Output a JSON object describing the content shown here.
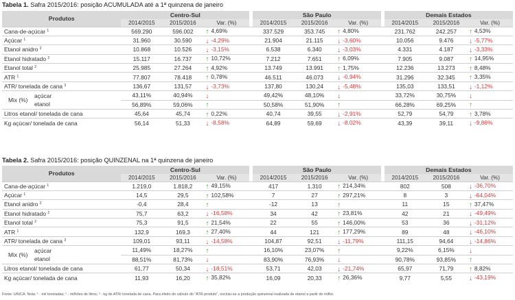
{
  "table1": {
    "title_bold": "Tabela 1.",
    "title_text": " Safra 2015/2016: posição ACUMULADA até a 1ª quinzena de janeiro",
    "header": {
      "produtos": "Produtos",
      "groups": [
        "Centro-Sul",
        "São Paulo",
        "Demais Estados"
      ],
      "col1": "2014/2015",
      "col2": "2015/2016",
      "var": "Var. (%)"
    },
    "rows": [
      {
        "label": "Cana-de-açúcar",
        "sup": "1",
        "cs": [
          "569.290",
          "596.002",
          "up",
          "4,69%"
        ],
        "sp": [
          "337.529",
          "353.745",
          "up",
          "4,80%"
        ],
        "de": [
          "231.762",
          "242.257",
          "up",
          "4,53%"
        ]
      },
      {
        "label": "Açúcar",
        "sup": "1",
        "cs": [
          "31.960",
          "30.590",
          "down",
          "-4,29%"
        ],
        "sp": [
          "21.904",
          "21.115",
          "down",
          "-3,60%"
        ],
        "de": [
          "10.056",
          "9.476",
          "down",
          "-5,77%"
        ]
      },
      {
        "label": "Etanol anidro",
        "sup": "2",
        "cs": [
          "10.868",
          "10.526",
          "down",
          "-3,15%"
        ],
        "sp": [
          "6.538",
          "6.340",
          "down",
          "-3,03%"
        ],
        "de": [
          "4.331",
          "4.187",
          "down",
          "-3,33%"
        ]
      },
      {
        "label": "Etanol hidratado",
        "sup": "2",
        "cs": [
          "15.117",
          "16.737",
          "up",
          "10,72%"
        ],
        "sp": [
          "7.212",
          "7.651",
          "up",
          "6,09%"
        ],
        "de": [
          "7.905",
          "9.087",
          "up",
          "14,95%"
        ]
      },
      {
        "label": "Etanol total",
        "sup": "2",
        "cs": [
          "25.985",
          "27.264",
          "up",
          "4,92%"
        ],
        "sp": [
          "13.749",
          "13.991",
          "up",
          "1,75%"
        ],
        "de": [
          "12.236",
          "13.273",
          "up",
          "8,48%"
        ]
      },
      {
        "label": "ATR",
        "sup": "1",
        "cs": [
          "77.807",
          "78.418",
          "up",
          "0,78%"
        ],
        "sp": [
          "46.511",
          "46.073",
          "down",
          "-0,94%"
        ],
        "de": [
          "31.296",
          "32.345",
          "up",
          "3,35%"
        ]
      },
      {
        "label": "ATR/ tonelada de cana",
        "sup": "3",
        "cs": [
          "136,67",
          "131,57",
          "down",
          "-3,73%"
        ],
        "sp": [
          "137,80",
          "130,24",
          "down",
          "-5,48%"
        ],
        "de": [
          "135,03",
          "133,51",
          "down",
          "-1,12%"
        ]
      }
    ],
    "mix": {
      "label": "Mix (%)",
      "acucar": "açúcar",
      "etanol": "etanol",
      "cs": {
        "a": [
          "43,11%",
          "40,94%",
          "down"
        ],
        "e": [
          "56,89%",
          "59,06%",
          "up"
        ]
      },
      "sp": {
        "a": [
          "49,42%",
          "48,10%",
          "down"
        ],
        "e": [
          "50,58%",
          "51,90%",
          "up"
        ]
      },
      "de": {
        "a": [
          "33,72%",
          "30,75%",
          "down"
        ],
        "e": [
          "66,28%",
          "69,25%",
          "up"
        ]
      }
    },
    "rows2": [
      {
        "label": "Litros etanol/ tonelada de cana",
        "sup": "",
        "cs": [
          "45,64",
          "45,74",
          "up",
          "0,22%"
        ],
        "sp": [
          "40,74",
          "39,55",
          "down",
          "-2,91%"
        ],
        "de": [
          "52,79",
          "54,79",
          "up",
          "3,78%"
        ]
      },
      {
        "label": "Kg açúcar/ tonelada de cana",
        "sup": "",
        "cs": [
          "56,14",
          "51,33",
          "down",
          "-8,58%"
        ],
        "sp": [
          "64,89",
          "59,69",
          "down",
          "-8,02%"
        ],
        "de": [
          "43,39",
          "39,11",
          "down",
          "-9,86%"
        ]
      }
    ]
  },
  "table2": {
    "title_bold": "Tabela 2.",
    "title_text": " Safra 2015/2016: posição QUINZENAL na 1ª quinzena de janeiro",
    "header": {
      "produtos": "Produtos",
      "groups": [
        "Centro-Sul",
        "São Paulo",
        "Demais Estados"
      ],
      "col1": "2014/2015",
      "col2": "2015/2016",
      "var": "Var. (%)"
    },
    "rows": [
      {
        "label": "Cana-de-açúcar",
        "sup": "1",
        "cs": [
          "1.219,0",
          "1.818,2",
          "up",
          "49,15%"
        ],
        "sp": [
          "417",
          "1.310",
          "up",
          "214,34%"
        ],
        "de": [
          "802",
          "508",
          "down",
          "-36,70%"
        ]
      },
      {
        "label": "Açúcar",
        "sup": "1",
        "cs": [
          "14,5",
          "29,5",
          "up",
          "102,58%"
        ],
        "sp": [
          "7",
          "27",
          "up",
          "297,21%"
        ],
        "de": [
          "8",
          "3",
          "down",
          "-64,04%"
        ]
      },
      {
        "label": "Etanol anidro",
        "sup": "2",
        "cs": [
          "-0,4",
          "28,4",
          "up",
          ""
        ],
        "sp": [
          "-12",
          "13",
          "up",
          ""
        ],
        "de": [
          "11",
          "15",
          "up",
          "37,47%"
        ]
      },
      {
        "label": "Etanol hidratado",
        "sup": "2",
        "cs": [
          "75,7",
          "63,2",
          "down",
          "-16,58%"
        ],
        "sp": [
          "34",
          "42",
          "up",
          "23,81%"
        ],
        "de": [
          "42",
          "21",
          "down",
          "-49,49%"
        ]
      },
      {
        "label": "Etanol total",
        "sup": "2",
        "cs": [
          "75,3",
          "91,5",
          "up",
          "21,54%"
        ],
        "sp": [
          "22",
          "55",
          "up",
          "146,00%"
        ],
        "de": [
          "53",
          "36",
          "down",
          "-31,12%"
        ]
      },
      {
        "label": "ATR",
        "sup": "1",
        "cs": [
          "132,9",
          "169,3",
          "up",
          "27,40%"
        ],
        "sp": [
          "44",
          "121",
          "up",
          "177,29%"
        ],
        "de": [
          "89",
          "48",
          "down",
          "-46,10%"
        ]
      },
      {
        "label": "ATR/ tonelada de cana",
        "sup": "3",
        "cs": [
          "109,01",
          "93,11",
          "down",
          "-14,58%"
        ],
        "sp": [
          "104,87",
          "92,51",
          "down",
          "-11,79%"
        ],
        "de": [
          "111,15",
          "94,64",
          "down",
          "-14,86%"
        ]
      }
    ],
    "mix": {
      "label": "Mix (%)",
      "acucar": "açúcar",
      "etanol": "etanol",
      "cs": {
        "a": [
          "11,49%",
          "18,27%",
          "up"
        ],
        "e": [
          "88,51%",
          "81,73%",
          "down"
        ]
      },
      "sp": {
        "a": [
          "16,10%",
          "23,07%",
          "up"
        ],
        "e": [
          "83,90%",
          "76,93%",
          "down"
        ]
      },
      "de": {
        "a": [
          "9,22%",
          "6,15%",
          "down"
        ],
        "e": [
          "90,78%",
          "93,85%",
          "up"
        ]
      }
    },
    "rows2": [
      {
        "label": "Litros etanol/ tonelada de cana",
        "sup": "",
        "cs": [
          "61,77",
          "50,34",
          "down",
          "-18,51%"
        ],
        "sp": [
          "53,71",
          "42,03",
          "down",
          "-21,74%"
        ],
        "de": [
          "65,97",
          "71,79",
          "up",
          "8,82%"
        ]
      },
      {
        "label": "Kg açúcar/ tonelada de cana",
        "sup": "",
        "cs": [
          "11,93",
          "16,20",
          "up",
          "35,82%"
        ],
        "sp": [
          "16,09",
          "20,33",
          "up",
          "26,36%"
        ],
        "de": [
          "9,77",
          "5,55",
          "down",
          "-43,19%"
        ]
      }
    ]
  },
  "footnote": "Fonte: UNICA. Nota: ¹ - mil toneladas; ² - milhões de litros; ³ - kg de ATR/ tonelada de cana. Para efeito do cálculo do \"ATR produto\", excluiu-se a produção quinzenal realizada de etanol a partir do milho.",
  "colors": {
    "up": "#3f9b2f",
    "down": "#d63b3b",
    "header_bg": "#d9d9d9"
  },
  "icons": {
    "up": "up-arrow-icon",
    "down": "down-arrow-icon"
  }
}
